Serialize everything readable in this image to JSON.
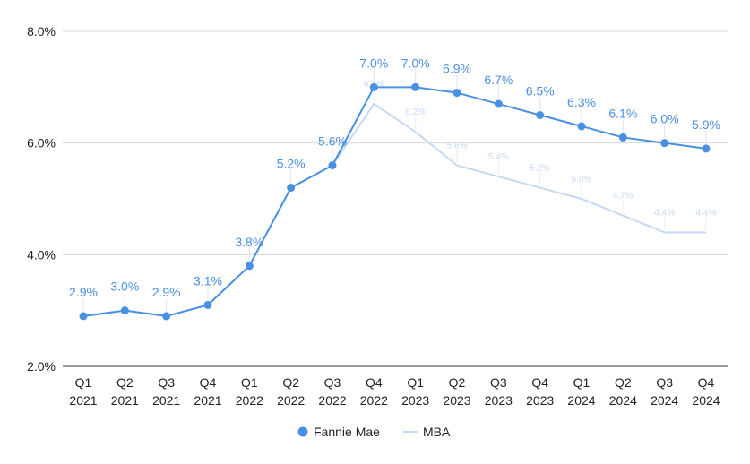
{
  "chart_data": {
    "type": "line",
    "categories": [
      [
        "Q1",
        "2021"
      ],
      [
        "Q2",
        "2021"
      ],
      [
        "Q3",
        "2021"
      ],
      [
        "Q4",
        "2021"
      ],
      [
        "Q1",
        "2022"
      ],
      [
        "Q2",
        "2022"
      ],
      [
        "Q3",
        "2022"
      ],
      [
        "Q4",
        "2022"
      ],
      [
        "Q1",
        "2023"
      ],
      [
        "Q2",
        "2023"
      ],
      [
        "Q3",
        "2023"
      ],
      [
        "Q4",
        "2023"
      ],
      [
        "Q1",
        "2024"
      ],
      [
        "Q2",
        "2024"
      ],
      [
        "Q3",
        "2024"
      ],
      [
        "Q4",
        "2024"
      ]
    ],
    "ylim": [
      2.0,
      8.0
    ],
    "yticks": [
      2.0,
      4.0,
      6.0,
      8.0
    ],
    "ytick_labels": [
      "2.0%",
      "4.0%",
      "6.0%",
      "8.0%"
    ],
    "grid": true,
    "legend_position": "bottom",
    "series": [
      {
        "name": "Fannie Mae",
        "color": "#4a90e2",
        "marker": "circle",
        "values": [
          2.9,
          3.0,
          2.9,
          3.1,
          3.8,
          5.2,
          5.6,
          7.0,
          7.0,
          6.9,
          6.7,
          6.5,
          6.3,
          6.1,
          6.0,
          5.9
        ],
        "labels": [
          "2.9%",
          "3.0%",
          "2.9%",
          "3.1%",
          "3.8%",
          "5.2%",
          "5.6%",
          "7.0%",
          "7.0%",
          "6.9%",
          "6.7%",
          "6.5%",
          "6.3%",
          "6.1%",
          "6.0%",
          "5.9%"
        ]
      },
      {
        "name": "MBA",
        "color": "#c5d9f4",
        "marker": "none",
        "values": [
          2.9,
          3.0,
          2.9,
          3.1,
          3.8,
          5.2,
          5.6,
          6.7,
          6.2,
          5.6,
          5.4,
          5.2,
          5.0,
          4.7,
          4.4,
          4.4
        ],
        "labels": [
          "",
          "",
          "",
          "",
          "",
          "",
          "",
          "6.7%",
          "6.2%",
          "5.6%",
          "5.4%",
          "5.2%",
          "5.0%",
          "4.7%",
          "4.4%",
          "4.4%"
        ]
      }
    ]
  }
}
